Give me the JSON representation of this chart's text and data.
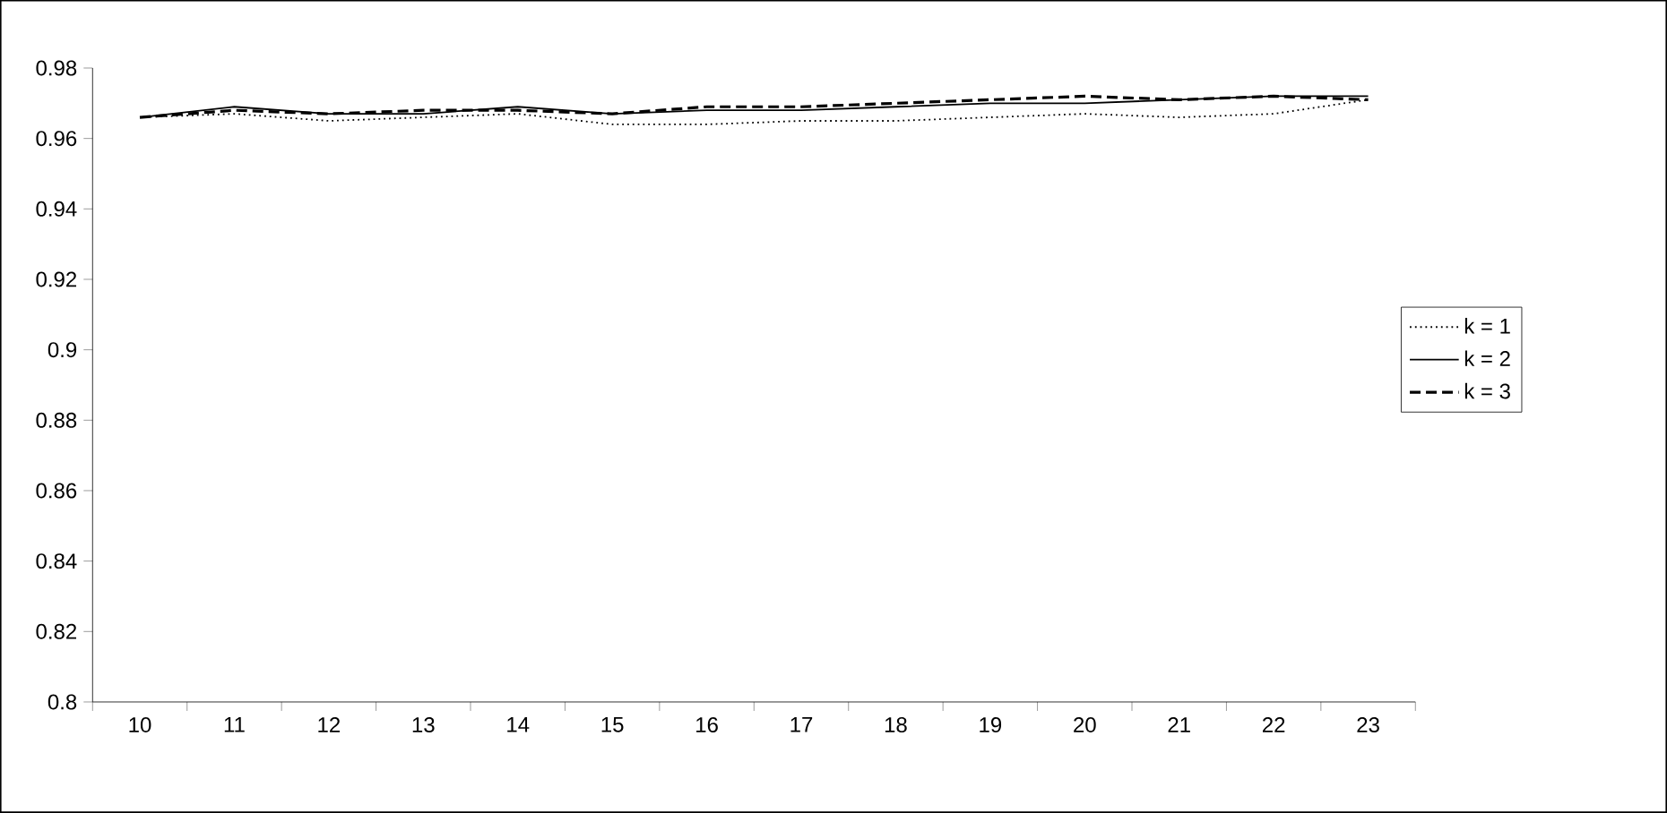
{
  "chart_data": {
    "type": "line",
    "categories": [
      "10",
      "11",
      "12",
      "13",
      "14",
      "15",
      "16",
      "17",
      "18",
      "19",
      "20",
      "21",
      "22",
      "23"
    ],
    "ylim": [
      0.8,
      0.98
    ],
    "yticks": [
      0.8,
      0.82,
      0.84,
      0.86,
      0.88,
      0.9,
      0.92,
      0.94,
      0.96,
      0.98
    ],
    "legend": "right",
    "grid": false,
    "marker": "none",
    "series": [
      {
        "name": "k = 1",
        "color": "#000000",
        "line_style": "dotted",
        "values": [
          0.966,
          0.967,
          0.965,
          0.966,
          0.967,
          0.964,
          0.964,
          0.965,
          0.965,
          0.966,
          0.967,
          0.966,
          0.967,
          0.971
        ]
      },
      {
        "name": "k = 2",
        "color": "#000000",
        "line_style": "solid",
        "values": [
          0.966,
          0.969,
          0.967,
          0.967,
          0.969,
          0.967,
          0.968,
          0.968,
          0.969,
          0.97,
          0.97,
          0.971,
          0.972,
          0.972
        ]
      },
      {
        "name": "k = 3",
        "color": "#000000",
        "line_style": "dashed",
        "values": [
          0.966,
          0.968,
          0.967,
          0.968,
          0.968,
          0.967,
          0.969,
          0.969,
          0.97,
          0.971,
          0.972,
          0.971,
          0.972,
          0.971
        ]
      }
    ]
  }
}
